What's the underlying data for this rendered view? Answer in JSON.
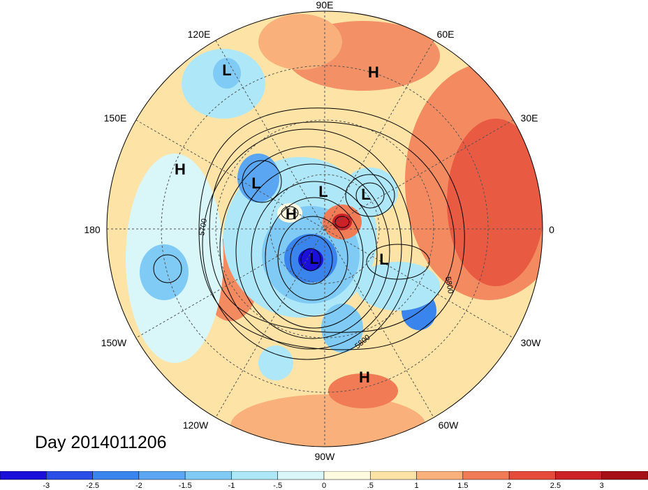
{
  "title": "Day 2014011206",
  "longitude_labels": [
    "90E",
    "60E",
    "30E",
    "0",
    "30W",
    "60W",
    "90W",
    "120W",
    "150W",
    "180",
    "150E",
    "120E"
  ],
  "pressure_centers": [
    {
      "label": "L",
      "name": "low-east-asia"
    },
    {
      "label": "H",
      "name": "high-central-asia"
    },
    {
      "label": "H",
      "name": "high-north-pacific"
    },
    {
      "label": "L",
      "name": "low-east-siberia"
    },
    {
      "label": "L",
      "name": "low-arctic-1"
    },
    {
      "label": "L",
      "name": "low-arctic-2"
    },
    {
      "label": "H",
      "name": "high-arctic"
    },
    {
      "label": "L",
      "name": "low-canada"
    },
    {
      "label": "L",
      "name": "low-north-atlantic"
    },
    {
      "label": "H",
      "name": "high-caribbean"
    }
  ],
  "contour_labels": [
    "5700",
    "5800",
    "5800"
  ],
  "colorbar": {
    "ticks": [
      "-3",
      "-2.5",
      "-2",
      "-1.5",
      "-1",
      "-.5",
      "0",
      ".5",
      "1",
      "1.5",
      "2",
      "2.5",
      "3"
    ],
    "colors": [
      "#1a10d9",
      "#2b4fe6",
      "#3a84ee",
      "#5aa6f2",
      "#7fcbf5",
      "#aee8f8",
      "#d9f6f9",
      "#fffae0",
      "#fde3a6",
      "#f9b07a",
      "#f07b55",
      "#e64a3a",
      "#cc2127",
      "#a50f15"
    ]
  }
}
